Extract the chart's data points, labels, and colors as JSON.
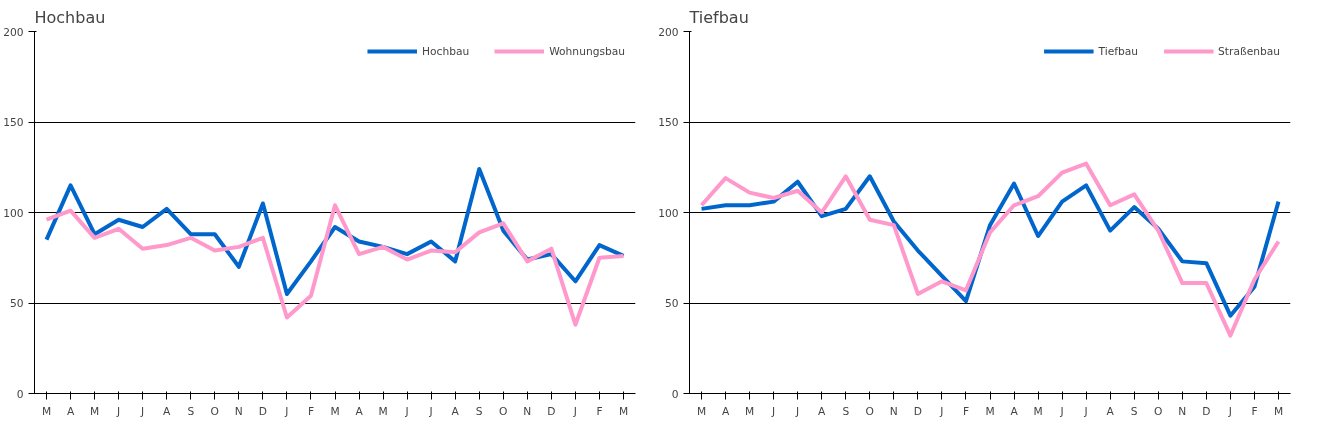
{
  "chart_data": [
    {
      "type": "line",
      "title": "Hochbau",
      "categories": [
        "M",
        "A",
        "M",
        "J",
        "J",
        "A",
        "S",
        "O",
        "N",
        "D",
        "J",
        "F",
        "M",
        "A",
        "M",
        "J",
        "J",
        "A",
        "S",
        "O",
        "N",
        "D",
        "J",
        "F",
        "M"
      ],
      "ylim": [
        0,
        200
      ],
      "yticks": [
        0,
        50,
        100,
        150,
        200
      ],
      "grid": "y",
      "legend": "top right",
      "series": [
        {
          "name": "Hochbau",
          "color": "#0066cc",
          "values": [
            85,
            115,
            88,
            96,
            92,
            102,
            88,
            88,
            70,
            105,
            55,
            73,
            92,
            84,
            81,
            77,
            84,
            73,
            124,
            90,
            74,
            77,
            62,
            82,
            76
          ]
        },
        {
          "name": "Wohnungsbau",
          "color": "#ff99cc",
          "values": [
            96,
            101,
            86,
            91,
            80,
            82,
            86,
            79,
            81,
            86,
            42,
            54,
            104,
            77,
            81,
            74,
            79,
            78,
            89,
            94,
            73,
            80,
            38,
            75,
            76
          ]
        }
      ]
    },
    {
      "type": "line",
      "title": "Tiefbau",
      "categories": [
        "M",
        "A",
        "M",
        "J",
        "J",
        "A",
        "S",
        "O",
        "N",
        "D",
        "J",
        "F",
        "M",
        "A",
        "M",
        "J",
        "J",
        "A",
        "S",
        "O",
        "N",
        "D",
        "J",
        "F",
        "M"
      ],
      "ylim": [
        0,
        200
      ],
      "yticks": [
        0,
        50,
        100,
        150,
        200
      ],
      "grid": "y",
      "legend": "top right",
      "series": [
        {
          "name": "Tiefbau",
          "color": "#0066cc",
          "values": [
            102,
            104,
            104,
            106,
            117,
            98,
            102,
            120,
            95,
            79,
            65,
            51,
            93,
            116,
            87,
            106,
            115,
            90,
            103,
            91,
            73,
            72,
            43,
            59,
            106
          ]
        },
        {
          "name": "Straßenbau",
          "color": "#ff99cc",
          "values": [
            104,
            119,
            111,
            108,
            112,
            100,
            120,
            96,
            93,
            55,
            62,
            57,
            89,
            104,
            109,
            122,
            127,
            104,
            110,
            90,
            61,
            61,
            32,
            63,
            84
          ]
        }
      ]
    }
  ]
}
